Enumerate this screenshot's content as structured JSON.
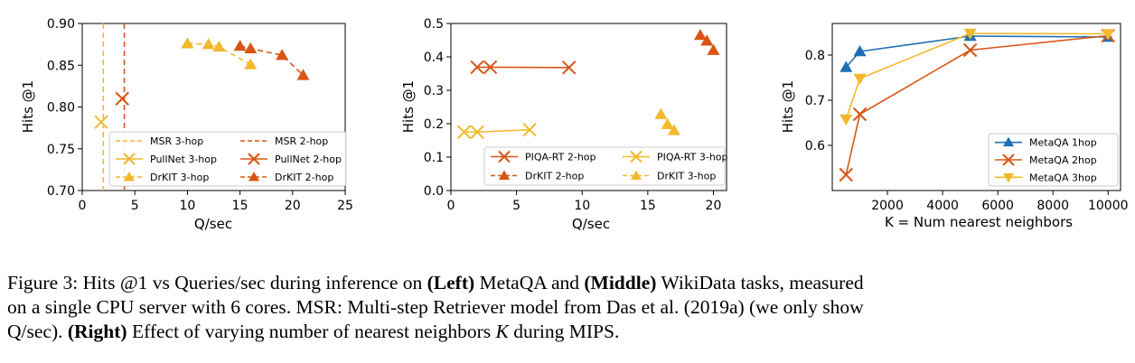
{
  "colors": {
    "light": "#f1b92d",
    "medium": "#e7a32a",
    "dark": "#d85515",
    "blue": "#1f6fb5"
  },
  "chart_data": [
    {
      "type": "scatter",
      "name": "left",
      "xlabel": "Q/sec",
      "ylabel": "Hits @1",
      "xlim": [
        0,
        25
      ],
      "ylim": [
        0.7,
        0.9
      ],
      "xticks": [
        "0",
        "5",
        "10",
        "15",
        "20",
        "25"
      ],
      "yticks": [
        "0.70",
        "0.75",
        "0.80",
        "0.85",
        "0.90"
      ],
      "series": [
        {
          "name": "MSR 3-hop",
          "kind": "vline",
          "x": 2,
          "color": "#f1b92d"
        },
        {
          "name": "MSR 2-hop",
          "kind": "vline",
          "x": 4,
          "color": "#d85515"
        },
        {
          "name": "PullNet 3-hop",
          "kind": "x",
          "color": "#f1b92d",
          "x": [
            1.8
          ],
          "y": [
            0.782
          ]
        },
        {
          "name": "PullNet 2-hop",
          "kind": "x",
          "color": "#d85515",
          "x": [
            3.8
          ],
          "y": [
            0.81
          ]
        },
        {
          "name": "DrKIT 3-hop",
          "kind": "tri",
          "color": "#f1b92d",
          "x": [
            10,
            12,
            13,
            16
          ],
          "y": [
            0.876,
            0.875,
            0.872,
            0.851
          ]
        },
        {
          "name": "DrKIT 2-hop",
          "kind": "tri",
          "color": "#d85515",
          "x": [
            15,
            16,
            19,
            21
          ],
          "y": [
            0.873,
            0.87,
            0.862,
            0.838
          ]
        }
      ],
      "legend": [
        "MSR 3-hop",
        "MSR 2-hop",
        "PullNet 3-hop",
        "PullNet 2-hop",
        "DrKIT 3-hop",
        "DrKIT 2-hop"
      ]
    },
    {
      "type": "scatter",
      "name": "middle",
      "xlabel": "Q/sec",
      "ylabel": "Hits @1",
      "xlim": [
        0,
        21
      ],
      "ylim": [
        0.0,
        0.5
      ],
      "xticks": [
        "0",
        "5",
        "10",
        "15",
        "20"
      ],
      "yticks": [
        "0.0",
        "0.1",
        "0.2",
        "0.3",
        "0.4",
        "0.5"
      ],
      "series": [
        {
          "name": "PIQA-RT 2-hop",
          "kind": "x",
          "color": "#d85515",
          "x": [
            2,
            3,
            9
          ],
          "y": [
            0.369,
            0.369,
            0.368
          ]
        },
        {
          "name": "PIQA-RT 3-hop",
          "kind": "x",
          "color": "#f1b92d",
          "x": [
            1,
            2,
            6
          ],
          "y": [
            0.175,
            0.175,
            0.182
          ]
        },
        {
          "name": "DrKIT 2-hop",
          "kind": "tri",
          "color": "#d85515",
          "x": [
            19,
            19.5,
            20
          ],
          "y": [
            0.465,
            0.448,
            0.42
          ]
        },
        {
          "name": "DrKIT 3-hop",
          "kind": "tri",
          "color": "#f1b92d",
          "x": [
            16,
            16.5,
            17
          ],
          "y": [
            0.228,
            0.198,
            0.18
          ]
        }
      ],
      "legend": [
        "PIQA-RT 2-hop",
        "PIQA-RT 3-hop",
        "DrKIT 2-hop",
        "DrKIT 3-hop"
      ]
    },
    {
      "type": "line",
      "name": "right",
      "xlabel": "K = Num nearest neighbors",
      "ylabel": "Hits @1",
      "xlim": [
        0,
        10450
      ],
      "ylim": [
        0.5,
        0.87
      ],
      "xticks": [
        "2000",
        "4000",
        "6000",
        "8000",
        "10000"
      ],
      "yticks": [
        "0.6",
        "0.7",
        "0.8"
      ],
      "x": [
        500,
        1000,
        5000,
        10000
      ],
      "series": [
        {
          "name": "MetaQA 1hop",
          "marker": "tri-up",
          "color": "#1f6fb5",
          "values": [
            0.773,
            0.808,
            0.842,
            0.84
          ]
        },
        {
          "name": "MetaQA 2hop",
          "marker": "x",
          "color": "#d85515",
          "values": [
            0.535,
            0.669,
            0.811,
            0.843
          ]
        },
        {
          "name": "MetaQA 3hop",
          "marker": "tri-down",
          "color": "#f1b92d",
          "values": [
            0.658,
            0.748,
            0.848,
            0.847
          ]
        }
      ],
      "legend": [
        "MetaQA 1hop",
        "MetaQA 2hop",
        "MetaQA 3hop"
      ]
    }
  ],
  "caption": {
    "p1": "Figure 3:  Hits @1 vs Queries/sec during inference on ",
    "b1": "(Left)",
    "p2": " MetaQA and ",
    "b2": "(Middle)",
    "p3": " WikiData tasks, measured",
    "line2": "on a single CPU server with 6 cores. MSR: Multi-step Retriever model from Das et al. (2019a) (we only show",
    "p4": "Q/sec). ",
    "b3": "(Right)",
    "p5": " Effect of varying number of nearest neighbors ",
    "k": "K",
    "p6": " during MIPS."
  }
}
